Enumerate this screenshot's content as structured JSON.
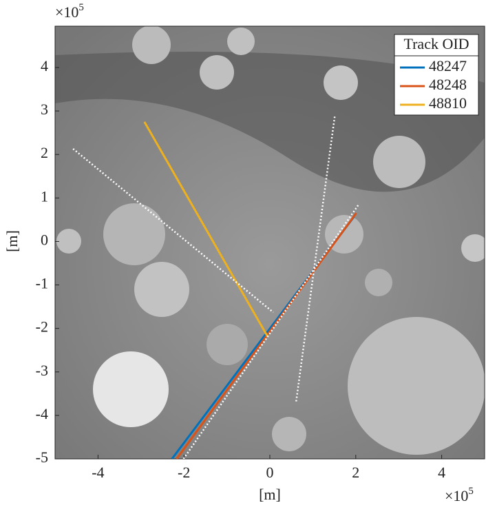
{
  "chart_data": {
    "type": "line",
    "xlabel": "[m]",
    "ylabel": "[m]",
    "x_exponent": {
      "base": "×10",
      "power": "5"
    },
    "y_exponent": {
      "base": "×10",
      "power": "5"
    },
    "xlim": [
      -5,
      5
    ],
    "ylim": [
      -5,
      4.95
    ],
    "xticks": [
      -4,
      -2,
      0,
      2,
      4
    ],
    "yticks": [
      -5,
      -4,
      -3,
      -2,
      -1,
      0,
      1,
      2,
      3,
      4
    ],
    "legend_title": "Track OID",
    "legend_position": "top-right",
    "series": [
      {
        "name": "48247",
        "color": "#0072bd",
        "x": [
          -2.28,
          1.96
        ],
        "values": [
          -5,
          0.57
        ]
      },
      {
        "name": "48248",
        "color": "#d95319",
        "x": [
          -2.17,
          2.01
        ],
        "values": [
          -5,
          0.65
        ]
      },
      {
        "name": "48810",
        "color": "#edb120",
        "x": [
          -2.92,
          -0.05
        ],
        "values": [
          2.75,
          -2.19
        ]
      },
      {
        "color": "#ffffff",
        "dotted": true,
        "x": [
          -4.58,
          0.08
        ],
        "values": [
          2.13,
          -1.63
        ]
      },
      {
        "color": "#ffffff",
        "dotted": true,
        "x": [
          1.51,
          0.61
        ],
        "values": [
          2.87,
          -3.7
        ]
      },
      {
        "color": "#ffffff",
        "dotted": true,
        "x": [
          -2.01,
          2.06
        ],
        "values": [
          -5,
          0.84
        ]
      }
    ]
  }
}
